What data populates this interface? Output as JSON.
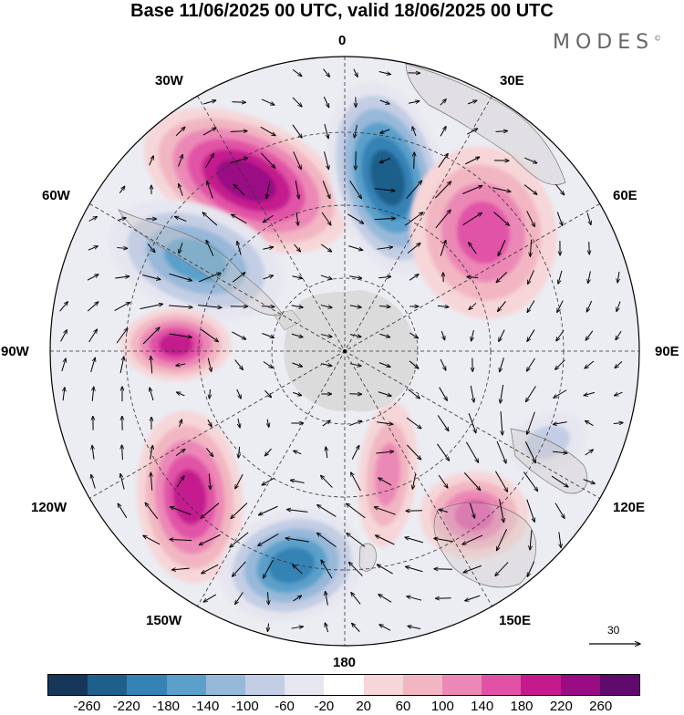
{
  "title": "Base 11/06/2025 00 UTC, valid 18/06/2025 00 UTC",
  "brand": "MODES",
  "brand_mark": "©",
  "longitude_labels": {
    "lon_0": "0",
    "lon_30e": "30E",
    "lon_60e": "60E",
    "lon_90e": "90E",
    "lon_120e": "120E",
    "lon_150e": "150E",
    "lon_180": "180",
    "lon_150w": "150W",
    "lon_120w": "120W",
    "lon_90w": "90W",
    "lon_60w": "60W",
    "lon_30w": "30W"
  },
  "reference_vector": "30",
  "colorbar": {
    "colors": [
      "#17375a",
      "#1f5f8b",
      "#3582b5",
      "#5aa0cb",
      "#97b8d9",
      "#c3cde4",
      "#e6e6f0",
      "#ffffff",
      "#f6d6d8",
      "#f2b6c2",
      "#ec88b6",
      "#e152a6",
      "#c41a8e",
      "#9a0c84",
      "#5f0a6c"
    ],
    "labels": [
      "-260",
      "-220",
      "-180",
      "-140",
      "-100",
      "-60",
      "-20",
      "20",
      "60",
      "100",
      "140",
      "180",
      "220",
      "260"
    ]
  },
  "anomaly_centers": [
    {
      "id": "high-north-west",
      "value": 240
    },
    {
      "id": "low-north",
      "value": -220
    },
    {
      "id": "high-north-east",
      "value": 170
    },
    {
      "id": "low-west",
      "value": -170
    },
    {
      "id": "high-west",
      "value": 200
    },
    {
      "id": "high-south-west",
      "value": 190
    },
    {
      "id": "low-south",
      "value": -190
    },
    {
      "id": "high-south",
      "value": 130
    },
    {
      "id": "high-south-east",
      "value": 150
    },
    {
      "id": "low-east",
      "value": -90
    }
  ]
}
